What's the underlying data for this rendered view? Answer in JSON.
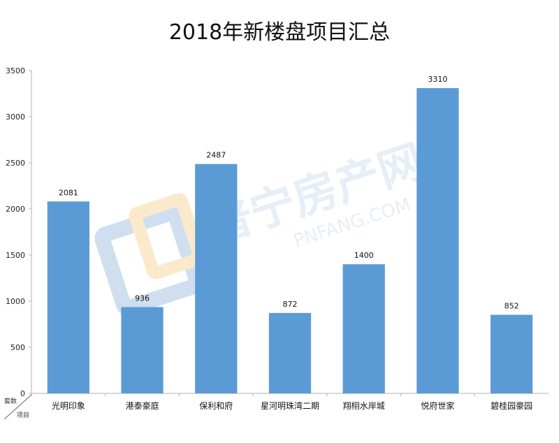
{
  "chart_data": {
    "type": "bar",
    "title": "2018年新楼盘项目汇总",
    "categories": [
      "光明印象",
      "港泰豪庭",
      "保利和府",
      "星河明珠湾二期",
      "翔栩水岸城",
      "悦府世家",
      "碧桂园豪园"
    ],
    "values": [
      2081,
      936,
      2487,
      872,
      1400,
      3310,
      852
    ],
    "ylim": [
      0,
      3500
    ],
    "yticks": [
      0,
      500,
      1000,
      1500,
      2000,
      2500,
      3000,
      3500
    ],
    "xlabel": "项目",
    "ylabel": "套数",
    "grid": false,
    "legend": "none",
    "bar_color": "#5b9bd5",
    "data_labels": true
  },
  "watermark": {
    "text_cn": "普宁房产网",
    "text_en": "PNFANG.COM"
  }
}
